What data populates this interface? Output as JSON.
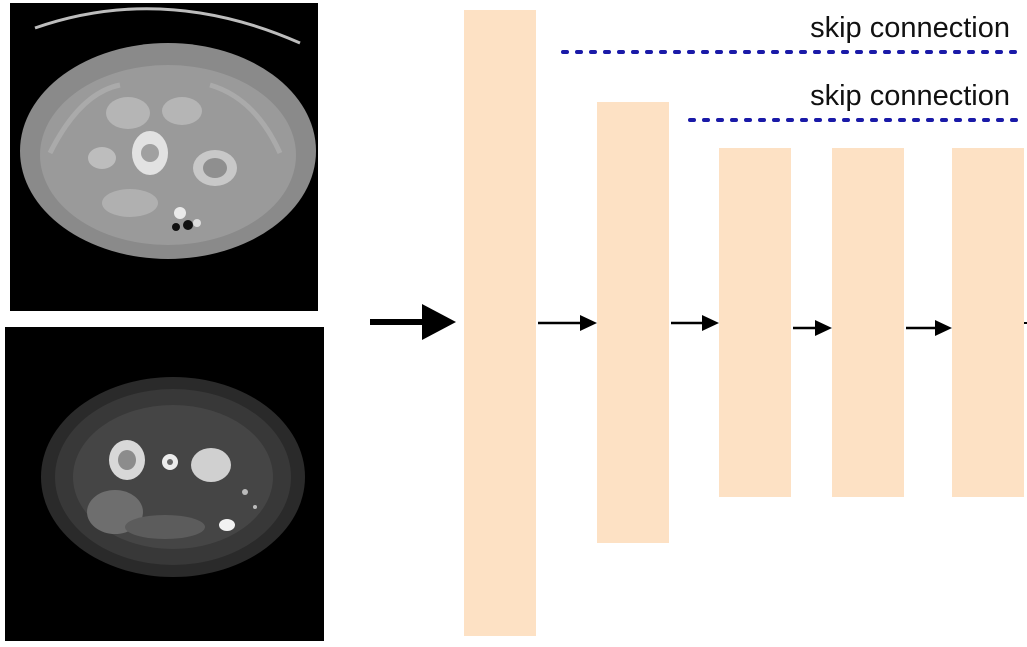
{
  "skip_connections": [
    {
      "label": "skip connection"
    },
    {
      "label": "skip connection"
    }
  ],
  "images": [
    {
      "name": "ct-scan",
      "kind": "CT abdominal axial slice"
    },
    {
      "name": "mri-scan",
      "kind": "MRI abdominal axial slice"
    }
  ],
  "colors": {
    "block_fill": "#fde1c4",
    "skip_line": "#1a1aa8",
    "arrow": "#000000"
  }
}
